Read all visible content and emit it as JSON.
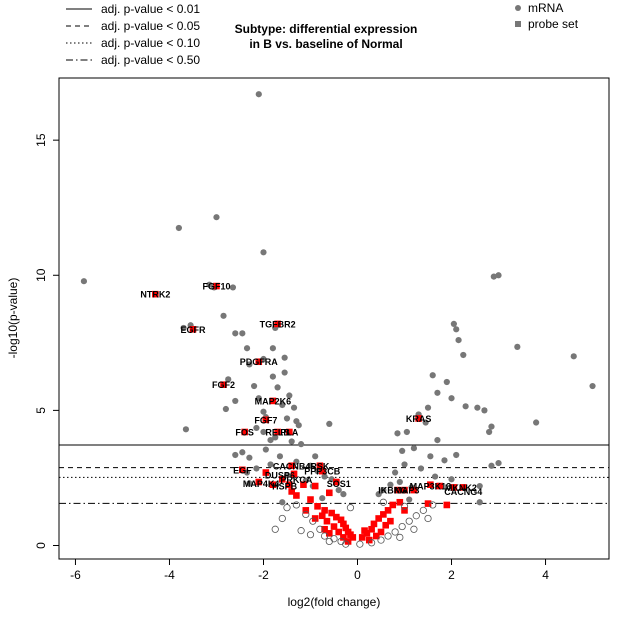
{
  "chart_data": {
    "type": "scatter",
    "title": "Subtype: differential expression\nin B vs. baseline of Normal",
    "xlabel": "log2(fold change)",
    "ylabel": "-log10(p-value)",
    "xlim": [
      -6.35,
      5.35
    ],
    "ylim": [
      -0.5,
      17.3
    ],
    "xticks": [
      -6,
      -4,
      -2,
      0,
      2,
      4
    ],
    "yticks": [
      0,
      5,
      10,
      15
    ],
    "grid": false,
    "legend_placement": "top-right",
    "threshold_legend": {
      "placement": "top-left",
      "entries": [
        {
          "label": "adj. p-value < 0.01",
          "linestyle": "solid"
        },
        {
          "label": "adj. p-value < 0.05",
          "linestyle": "dashed"
        },
        {
          "label": "adj. p-value < 0.10",
          "linestyle": "dotted"
        },
        {
          "label": "adj. p-value < 0.50",
          "linestyle": "dashdot"
        }
      ]
    },
    "thresholds": [
      {
        "label": "adj. p-value < 0.01",
        "y": 3.72,
        "linestyle": "solid"
      },
      {
        "label": "adj. p-value < 0.05",
        "y": 2.88,
        "linestyle": "dashed"
      },
      {
        "label": "adj. p-value < 0.10",
        "y": 2.52,
        "linestyle": "dotted"
      },
      {
        "label": "adj. p-value < 0.50",
        "y": 1.56,
        "linestyle": "dashdot"
      }
    ],
    "series": [
      {
        "name": "mRNA",
        "marker": "circle",
        "color": "#777777",
        "points": [
          [
            -5.82,
            9.78
          ],
          [
            -3.8,
            11.75
          ],
          [
            -3.0,
            12.15
          ],
          [
            -2.1,
            16.7
          ],
          [
            -2.0,
            10.85
          ],
          [
            -3.15,
            9.65
          ],
          [
            -3.05,
            9.55
          ],
          [
            -2.65,
            9.55
          ],
          [
            -2.85,
            8.5
          ],
          [
            -3.55,
            8.15
          ],
          [
            -3.7,
            8.05
          ],
          [
            -2.6,
            7.85
          ],
          [
            -2.45,
            7.85
          ],
          [
            -1.75,
            8.05
          ],
          [
            -2.35,
            7.3
          ],
          [
            -1.8,
            7.3
          ],
          [
            -1.55,
            6.95
          ],
          [
            -2.0,
            6.9
          ],
          [
            -2.3,
            6.7
          ],
          [
            -1.55,
            6.4
          ],
          [
            -1.8,
            6.25
          ],
          [
            -2.75,
            6.15
          ],
          [
            -2.2,
            5.9
          ],
          [
            -1.7,
            5.85
          ],
          [
            -1.45,
            5.55
          ],
          [
            -2.1,
            5.45
          ],
          [
            -2.6,
            5.35
          ],
          [
            -1.6,
            5.2
          ],
          [
            -1.35,
            5.1
          ],
          [
            -2.8,
            5.05
          ],
          [
            -2.0,
            4.95
          ],
          [
            -1.95,
            4.75
          ],
          [
            -1.5,
            4.7
          ],
          [
            -1.3,
            4.6
          ],
          [
            -1.25,
            4.45
          ],
          [
            -2.15,
            4.35
          ],
          [
            -0.6,
            4.5
          ],
          [
            -3.65,
            4.3
          ],
          [
            -2.0,
            4.2
          ],
          [
            -1.75,
            4.0
          ],
          [
            -1.85,
            3.9
          ],
          [
            -1.4,
            3.85
          ],
          [
            -1.2,
            3.75
          ],
          [
            -1.95,
            3.55
          ],
          [
            -2.45,
            3.45
          ],
          [
            -2.6,
            3.35
          ],
          [
            -2.3,
            3.25
          ],
          [
            -1.65,
            3.3
          ],
          [
            -0.9,
            3.3
          ],
          [
            -1.3,
            3.1
          ],
          [
            -1.0,
            2.95
          ],
          [
            -1.85,
            3.0
          ],
          [
            -2.15,
            2.85
          ],
          [
            -2.35,
            2.7
          ],
          [
            -0.85,
            2.75
          ],
          [
            -1.5,
            2.6
          ],
          [
            -0.7,
            2.55
          ],
          [
            -0.55,
            2.45
          ],
          [
            -1.1,
            2.4
          ],
          [
            -2.3,
            2.3
          ],
          [
            -0.95,
            2.2
          ],
          [
            -0.4,
            2.05
          ],
          [
            -0.3,
            1.9
          ],
          [
            -0.75,
            1.75
          ],
          [
            -1.6,
            1.6
          ],
          [
            4.6,
            7.0
          ],
          [
            5.0,
            5.9
          ],
          [
            3.4,
            7.35
          ],
          [
            2.9,
            9.95
          ],
          [
            3.0,
            10.0
          ],
          [
            2.05,
            8.2
          ],
          [
            2.1,
            8.0
          ],
          [
            2.15,
            7.6
          ],
          [
            2.25,
            7.05
          ],
          [
            1.6,
            6.3
          ],
          [
            1.9,
            6.05
          ],
          [
            1.7,
            5.65
          ],
          [
            2.0,
            5.45
          ],
          [
            2.3,
            5.15
          ],
          [
            1.5,
            5.1
          ],
          [
            2.55,
            5.1
          ],
          [
            2.7,
            5.0
          ],
          [
            1.3,
            4.85
          ],
          [
            1.45,
            4.55
          ],
          [
            2.85,
            4.4
          ],
          [
            3.8,
            4.55
          ],
          [
            2.8,
            4.2
          ],
          [
            1.05,
            4.2
          ],
          [
            0.85,
            4.15
          ],
          [
            1.7,
            3.9
          ],
          [
            1.2,
            3.6
          ],
          [
            0.95,
            3.5
          ],
          [
            1.55,
            3.3
          ],
          [
            2.1,
            3.35
          ],
          [
            1.85,
            3.15
          ],
          [
            3.0,
            3.05
          ],
          [
            2.85,
            2.95
          ],
          [
            1.0,
            3.0
          ],
          [
            1.35,
            2.85
          ],
          [
            0.8,
            2.7
          ],
          [
            1.65,
            2.55
          ],
          [
            2.0,
            2.45
          ],
          [
            0.9,
            2.35
          ],
          [
            0.7,
            2.25
          ],
          [
            1.15,
            2.15
          ],
          [
            2.6,
            2.2
          ],
          [
            0.55,
            2.05
          ],
          [
            0.45,
            1.9
          ],
          [
            1.1,
            1.7
          ],
          [
            2.6,
            1.6
          ]
        ]
      },
      {
        "name": "probe set",
        "marker": "square",
        "color": "#ff0000",
        "points": [
          [
            -4.3,
            9.3
          ],
          [
            -3.0,
            9.6
          ],
          [
            -3.5,
            8.0
          ],
          [
            -1.7,
            8.2
          ],
          [
            -2.1,
            6.8
          ],
          [
            -2.85,
            5.95
          ],
          [
            -1.8,
            5.35
          ],
          [
            -1.95,
            4.65
          ],
          [
            -1.7,
            4.2
          ],
          [
            -1.45,
            4.2
          ],
          [
            -2.4,
            4.2
          ],
          [
            -2.45,
            2.8
          ],
          [
            -1.4,
            2.95
          ],
          [
            -0.8,
            2.95
          ],
          [
            -0.75,
            2.75
          ],
          [
            -1.35,
            2.65
          ],
          [
            -1.95,
            2.7
          ],
          [
            -1.6,
            2.45
          ],
          [
            -2.1,
            2.35
          ],
          [
            -1.8,
            2.25
          ],
          [
            -1.45,
            2.25
          ],
          [
            -1.15,
            2.25
          ],
          [
            -0.9,
            2.2
          ],
          [
            -0.45,
            2.35
          ],
          [
            -1.4,
            2.0
          ],
          [
            -0.6,
            1.95
          ],
          [
            1.3,
            4.7
          ],
          [
            1.55,
            2.25
          ],
          [
            1.75,
            2.2
          ],
          [
            2.05,
            2.15
          ],
          [
            2.25,
            2.15
          ],
          [
            1.0,
            2.05
          ],
          [
            0.85,
            2.05
          ],
          [
            1.2,
            2.05
          ],
          [
            1.9,
            1.5
          ],
          [
            1.5,
            1.55
          ],
          [
            -1.3,
            1.85
          ],
          [
            -1.0,
            1.7
          ],
          [
            -0.85,
            1.45
          ],
          [
            -0.7,
            1.3
          ],
          [
            -0.55,
            1.2
          ],
          [
            -0.45,
            1.05
          ],
          [
            -0.35,
            0.95
          ],
          [
            -0.3,
            0.8
          ],
          [
            -0.25,
            0.65
          ],
          [
            -0.2,
            0.5
          ],
          [
            -0.15,
            0.4
          ],
          [
            -0.1,
            0.3
          ],
          [
            -0.65,
            0.9
          ],
          [
            -0.5,
            0.7
          ],
          [
            -0.4,
            0.5
          ],
          [
            -0.75,
            1.1
          ],
          [
            -0.6,
            0.45
          ],
          [
            -0.3,
            0.3
          ],
          [
            -0.9,
            1.0
          ],
          [
            -1.1,
            1.3
          ],
          [
            -0.7,
            0.6
          ],
          [
            0.1,
            0.3
          ],
          [
            0.2,
            0.45
          ],
          [
            0.3,
            0.6
          ],
          [
            0.35,
            0.8
          ],
          [
            0.45,
            1.0
          ],
          [
            0.55,
            1.15
          ],
          [
            0.65,
            1.3
          ],
          [
            0.75,
            1.5
          ],
          [
            0.9,
            1.6
          ],
          [
            0.5,
            0.5
          ],
          [
            0.6,
            0.75
          ],
          [
            0.4,
            0.35
          ],
          [
            1.0,
            1.3
          ],
          [
            0.7,
            0.9
          ],
          [
            0.25,
            0.2
          ],
          [
            -0.2,
            0.15
          ],
          [
            0.15,
            0.55
          ]
        ]
      },
      {
        "name": "",
        "marker": "open-circle",
        "color": "#555555",
        "points": [
          [
            -1.3,
            1.5
          ],
          [
            -1.1,
            1.15
          ],
          [
            -0.95,
            0.9
          ],
          [
            -0.8,
            0.6
          ],
          [
            -0.7,
            0.35
          ],
          [
            -0.5,
            0.25
          ],
          [
            -0.35,
            0.15
          ],
          [
            -1.6,
            1.0
          ],
          [
            -1.75,
            0.6
          ],
          [
            -1.2,
            0.55
          ],
          [
            -1.0,
            0.4
          ],
          [
            -0.6,
            0.15
          ],
          [
            -0.25,
            0.05
          ],
          [
            0.05,
            0.05
          ],
          [
            0.3,
            0.1
          ],
          [
            0.5,
            0.2
          ],
          [
            0.65,
            0.35
          ],
          [
            0.8,
            0.5
          ],
          [
            0.95,
            0.7
          ],
          [
            1.1,
            0.9
          ],
          [
            1.25,
            1.1
          ],
          [
            1.4,
            1.3
          ],
          [
            1.5,
            1.0
          ],
          [
            1.2,
            0.6
          ],
          [
            0.9,
            0.3
          ],
          [
            1.6,
            1.5
          ],
          [
            1.0,
            1.45
          ],
          [
            0.55,
            1.6
          ],
          [
            -0.15,
            1.4
          ],
          [
            -1.5,
            1.4
          ]
        ]
      }
    ],
    "annotations": [
      {
        "text": "NTRK2",
        "x": -4.3,
        "y": 9.3
      },
      {
        "text": "FGF10",
        "x": -3.0,
        "y": 9.6
      },
      {
        "text": "EGFR",
        "x": -3.5,
        "y": 8.0
      },
      {
        "text": "TGFBR2",
        "x": -1.7,
        "y": 8.2
      },
      {
        "text": "PDGFRA",
        "x": -2.1,
        "y": 6.8
      },
      {
        "text": "FGF2",
        "x": -2.85,
        "y": 5.95
      },
      {
        "text": "MAP2K6",
        "x": -1.8,
        "y": 5.35
      },
      {
        "text": "FGF7",
        "x": -1.95,
        "y": 4.65
      },
      {
        "text": "RELB",
        "x": -1.7,
        "y": 4.2
      },
      {
        "text": "PLA",
        "x": -1.45,
        "y": 4.2
      },
      {
        "text": "FOS",
        "x": -2.4,
        "y": 4.2
      },
      {
        "text": "KRAS",
        "x": 1.3,
        "y": 4.7
      },
      {
        "text": "EGF",
        "x": -2.45,
        "y": 2.8
      },
      {
        "text": "CACNB4",
        "x": -1.4,
        "y": 2.95
      },
      {
        "text": "RSK",
        "x": -0.8,
        "y": 2.95
      },
      {
        "text": "PPP3CB",
        "x": -0.75,
        "y": 2.75
      },
      {
        "text": "DUSP6",
        "x": -1.65,
        "y": 2.6
      },
      {
        "text": "PRKCA",
        "x": -1.3,
        "y": 2.45
      },
      {
        "text": "MAP4K4",
        "x": -2.05,
        "y": 2.3
      },
      {
        "text": "HSPB",
        "x": -1.55,
        "y": 2.2
      },
      {
        "text": "SOS1",
        "x": -0.4,
        "y": 2.3
      },
      {
        "text": "IKBKG",
        "x": 0.75,
        "y": 2.05
      },
      {
        "text": "MAP3",
        "x": 1.05,
        "y": 2.05
      },
      {
        "text": "MAP3K13",
        "x": 1.55,
        "y": 2.2
      },
      {
        "text": "MKNK2",
        "x": 2.2,
        "y": 2.15
      },
      {
        "text": "CACNG4",
        "x": 2.25,
        "y": 2.0
      }
    ]
  },
  "legend": {
    "mrna": "mRNA",
    "probe": "probe set"
  }
}
